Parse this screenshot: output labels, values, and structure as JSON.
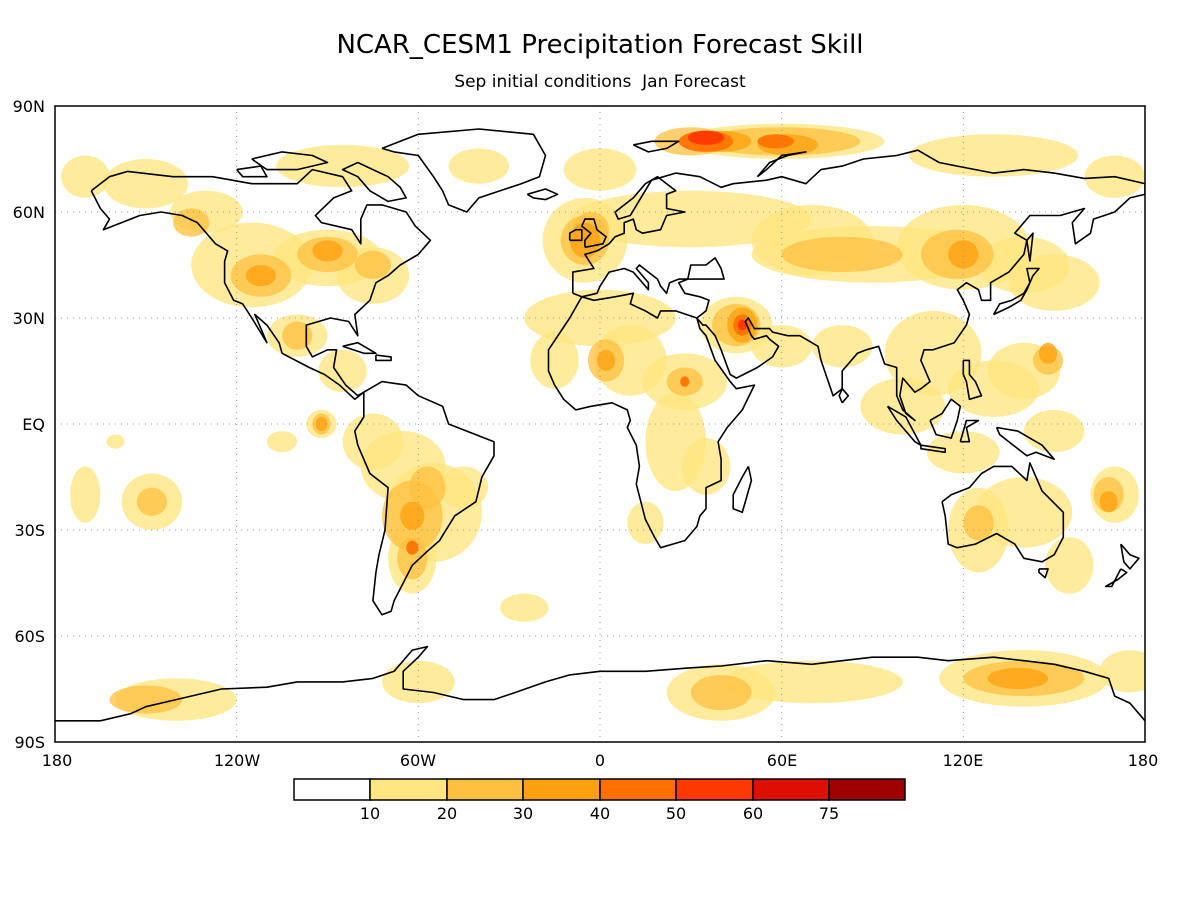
{
  "title": "NCAR_CESM1 Precipitation Forecast Skill",
  "subtitle": "Sep initial conditions  Jan Forecast",
  "axes": {
    "lat_labels": [
      "90N",
      "60N",
      "30N",
      "EQ",
      "30S",
      "60S",
      "90S"
    ],
    "lon_labels": [
      "180",
      "120W",
      "60W",
      "0",
      "60E",
      "120E",
      "180"
    ]
  },
  "colorbar": {
    "labels": [
      "10",
      "20",
      "30",
      "40",
      "50",
      "60",
      "75"
    ],
    "colors": [
      "#ffffff",
      "#ffe680",
      "#ffc040",
      "#ffa010",
      "#ff7000",
      "#ff3800",
      "#dd1000",
      "#a00000"
    ]
  },
  "skill_patches": [
    {
      "region": "Barents Sea",
      "lon": 35,
      "lat": 80,
      "level": 5
    },
    {
      "region": "Kara Sea",
      "lon": 62,
      "lat": 79,
      "level": 4
    },
    {
      "region": "Arabian Peninsula",
      "lon": 47,
      "lat": 28,
      "level": 5
    },
    {
      "region": "Sahara",
      "lon": 2,
      "lat": 18,
      "level": 4
    },
    {
      "region": "Central Africa",
      "lon": 28,
      "lat": 12,
      "level": 5
    },
    {
      "region": "Western Europe",
      "lon": -5,
      "lat": 52,
      "level": 3
    },
    {
      "region": "Central Asia",
      "lon": 80,
      "lat": 47,
      "level": 3
    },
    {
      "region": "Mongolia",
      "lon": 120,
      "lat": 48,
      "level": 3
    },
    {
      "region": "Great Lakes",
      "lon": -90,
      "lat": 47,
      "level": 3
    },
    {
      "region": "Western US",
      "lon": -110,
      "lat": 42,
      "level": 3
    },
    {
      "region": "Mexico",
      "lon": -100,
      "lat": 25,
      "level": 2
    },
    {
      "region": "Eastern Pacific",
      "lon": -92,
      "lat": 0,
      "level": 3
    },
    {
      "region": "Southern South America",
      "lon": -62,
      "lat": -25,
      "level": 3
    },
    {
      "region": "Western Pacific",
      "lon": 148,
      "lat": 18,
      "level": 3
    },
    {
      "region": "Southwest Pacific",
      "lon": 168,
      "lat": -20,
      "level": 3
    },
    {
      "region": "Western Australia",
      "lon": 125,
      "lat": -28,
      "level": 2
    },
    {
      "region": "East Antarctica",
      "lon": 140,
      "lat": -72,
      "level": 2
    },
    {
      "region": "South Pacific",
      "lon": -148,
      "lat": -22,
      "level": 2
    }
  ]
}
